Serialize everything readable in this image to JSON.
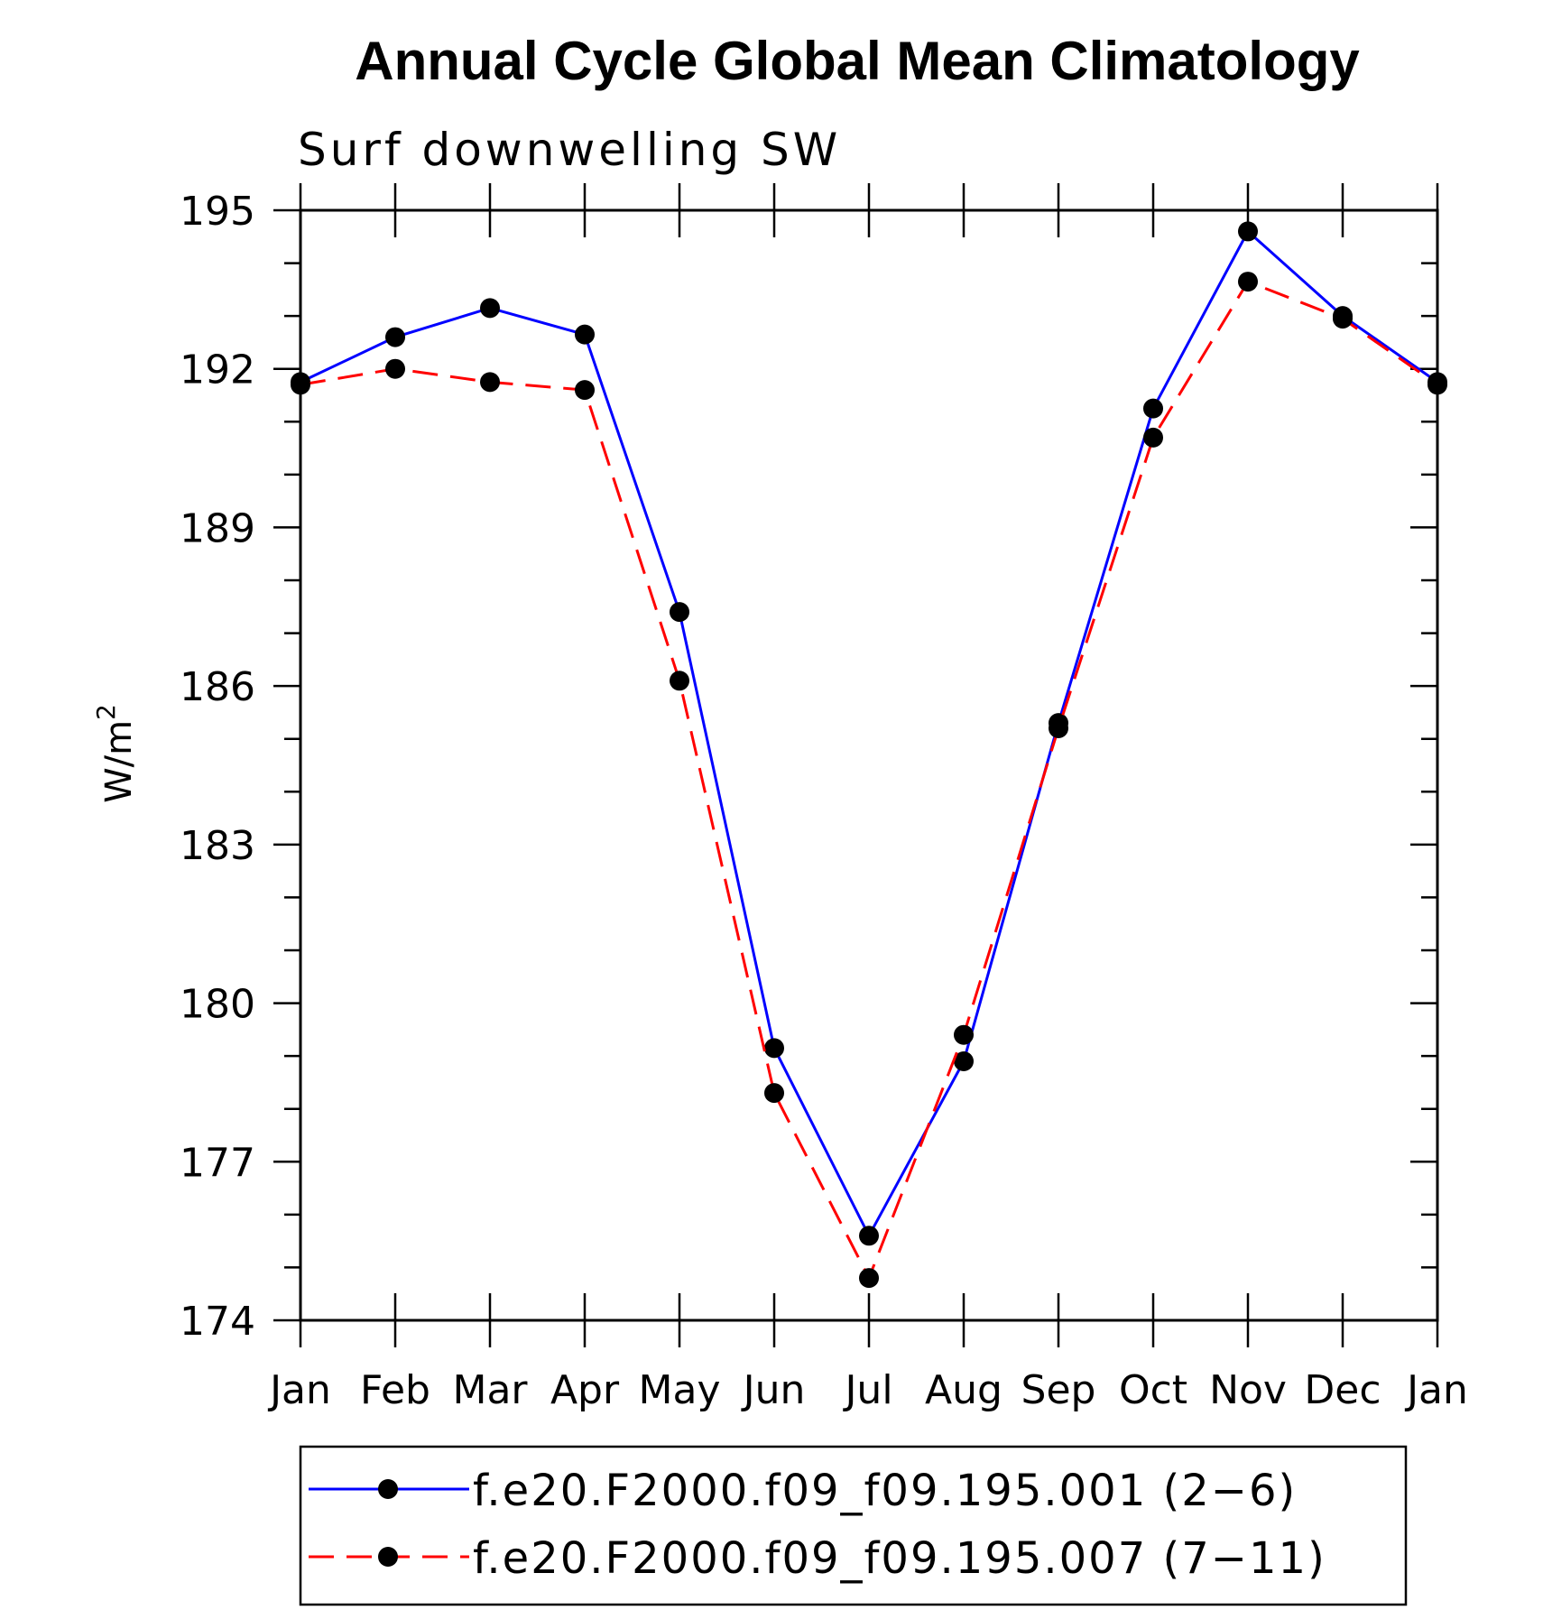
{
  "chart_data": {
    "type": "line",
    "title": "Annual Cycle Global Mean Climatology",
    "subtitle": "Surf downwelling SW",
    "ylabel": "W/m",
    "ylabel_superscript": "2",
    "categories": [
      "Jan",
      "Feb",
      "Mar",
      "Apr",
      "May",
      "Jun",
      "Jul",
      "Aug",
      "Sep",
      "Oct",
      "Nov",
      "Dec",
      "Jan"
    ],
    "ylim": [
      174,
      195
    ],
    "yticks": [
      174,
      177,
      180,
      183,
      186,
      189,
      192,
      195
    ],
    "ytick_labels": [
      "174",
      "177",
      "180",
      "183",
      "186",
      "189",
      "192",
      "195"
    ],
    "grid": false,
    "legend_position": "bottom",
    "series": [
      {
        "name": "f.e20.F2000.f09_f09.195.001 (2−6)",
        "color": "#0000ff",
        "line_style": "solid",
        "marker": "filled-circle",
        "marker_color": "#000000",
        "values": [
          191.75,
          192.6,
          193.15,
          192.65,
          187.4,
          179.15,
          175.6,
          178.9,
          185.3,
          191.25,
          194.6,
          193.0,
          191.75
        ]
      },
      {
        "name": "f.e20.F2000.f09_f09.195.007 (7−11)",
        "color": "#ff0000",
        "line_style": "dashed",
        "marker": "filled-circle",
        "marker_color": "#000000",
        "values": [
          191.7,
          192.0,
          191.75,
          191.6,
          186.1,
          178.3,
          174.8,
          179.4,
          185.2,
          190.7,
          193.65,
          192.95,
          191.7
        ]
      }
    ]
  }
}
